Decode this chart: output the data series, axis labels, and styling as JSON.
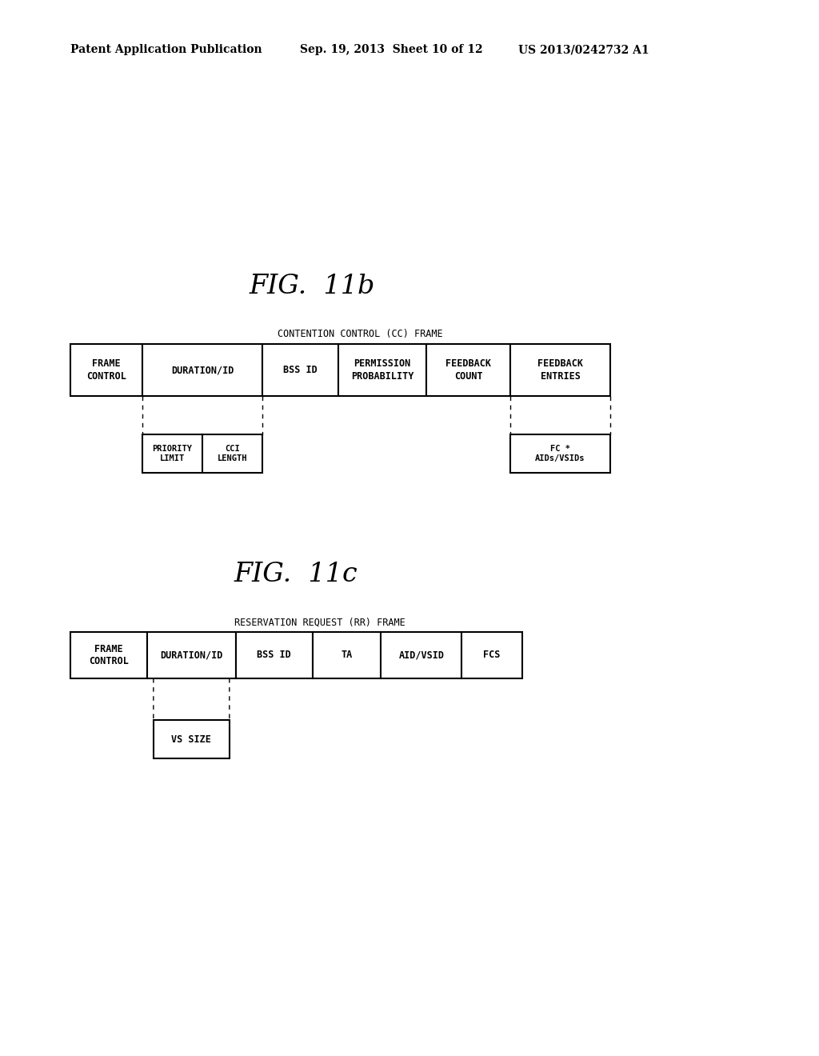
{
  "header_left": "Patent Application Publication",
  "header_mid": "Sep. 19, 2013  Sheet 10 of 12",
  "header_right": "US 2013/0242732 A1",
  "fig11b_title": "FIG.  11b",
  "fig11b_label": "CONTENTION CONTROL (CC) FRAME",
  "fig11b_cols": [
    "FRAME\nCONTROL",
    "DURATION/ID",
    "BSS ID",
    "PERMISSION\nPROBABILITY",
    "FEEDBACK\nCOUNT",
    "FEEDBACK\nENTRIES"
  ],
  "fig11b_col_widths": [
    90,
    150,
    95,
    110,
    105,
    125
  ],
  "fig11b_sub1a": "PRIORITY\nLIMIT",
  "fig11b_sub1b": "CCI\nLENGTH",
  "fig11b_sub2": "FC *\nAIDs/VSIDs",
  "fig11c_title": "FIG.  11c",
  "fig11c_label": "RESERVATION REQUEST (RR) FRAME",
  "fig11c_cols": [
    "FRAME\nCONTROL",
    "DURATION/ID",
    "BSS ID",
    "TA",
    "AID/VSID",
    "FCS"
  ],
  "fig11c_col_widths": [
    95,
    110,
    95,
    85,
    100,
    75
  ],
  "fig11c_sub": "VS SIZE",
  "bg_color": "#ffffff"
}
